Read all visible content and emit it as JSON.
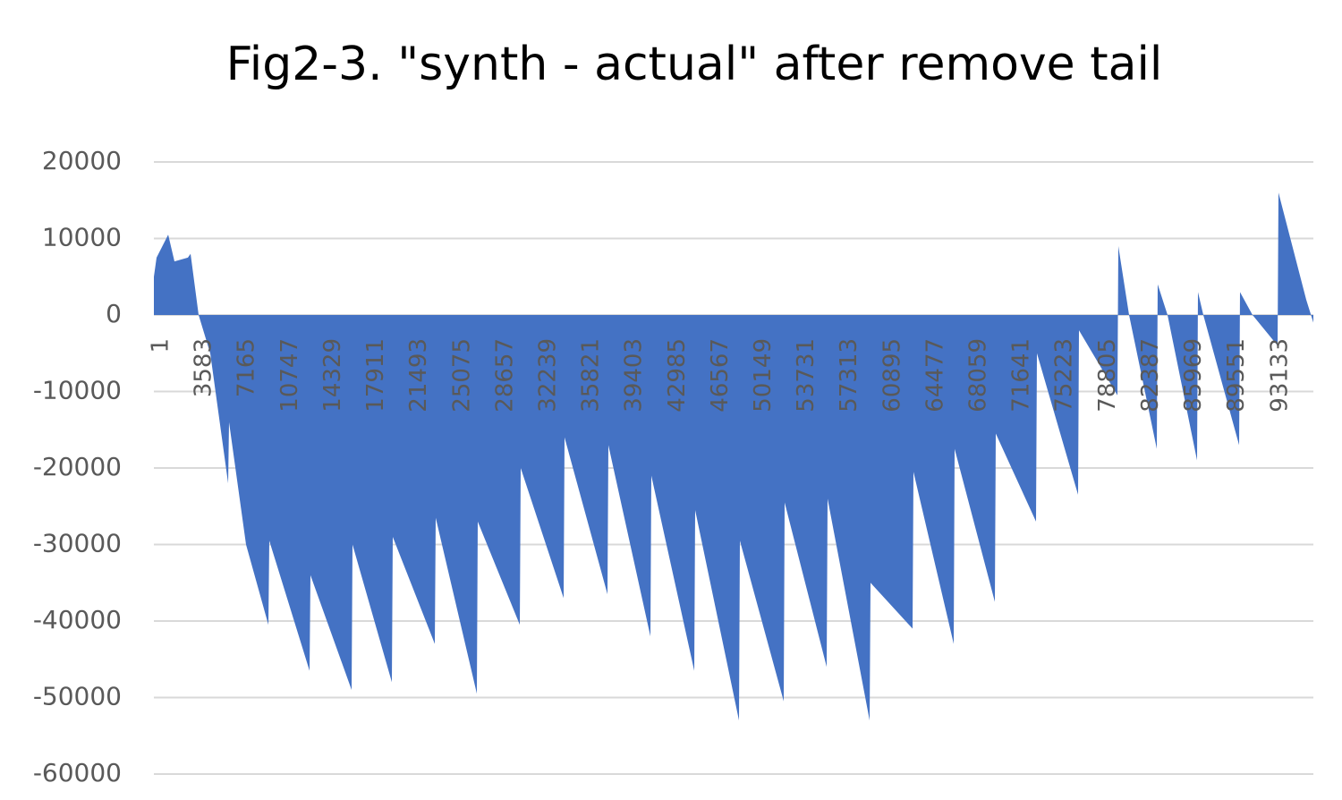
{
  "chart_data": {
    "type": "area",
    "title": "Fig2-3. \"synth - actual\" after remove tail",
    "color": "#4472c4",
    "grid": true,
    "xlim": [
      0,
      96500
    ],
    "ylim": [
      -60000,
      20000
    ],
    "yticks": [
      -60000,
      -50000,
      -40000,
      -30000,
      -20000,
      -10000,
      0,
      10000,
      20000
    ],
    "xticks": [
      1,
      3583,
      7165,
      10747,
      14329,
      17911,
      21493,
      25075,
      28657,
      32239,
      35821,
      39403,
      42985,
      46567,
      50149,
      53731,
      57313,
      60895,
      64477,
      68059,
      71641,
      75223,
      78805,
      82387,
      85969,
      89551,
      93133
    ],
    "x": [
      1,
      223,
      1191,
      1713,
      2830,
      3053,
      3723,
      4691,
      6180,
      6254,
      7669,
      9531,
      9606,
      12956,
      13031,
      16456,
      16530,
      19806,
      19881,
      23380,
      23454,
      26880,
      26954,
      30454,
      30528,
      34103,
      34177,
      37751,
      37826,
      41325,
      41400,
      44974,
      45048,
      48697,
      48771,
      52420,
      52494,
      55994,
      56068,
      59568,
      59642,
      63142,
      63216,
      66567,
      66641,
      69992,
      70066,
      73417,
      73491,
      76917,
      76991,
      80193,
      80267,
      81160,
      83469,
      83543,
      84362,
      86820,
      86894,
      87341,
      90320,
      90394,
      91437,
      93522,
      93596,
      95904,
      96500
    ],
    "values": [
      5000,
      7500,
      10500,
      7000,
      7500,
      8000,
      0,
      -5000,
      -22000,
      -14000,
      -30000,
      -40500,
      -29500,
      -46500,
      -34000,
      -49000,
      -30000,
      -48000,
      -29000,
      -43000,
      -26500,
      -49500,
      -27000,
      -40500,
      -20000,
      -37000,
      -16000,
      -36500,
      -17000,
      -42000,
      -21000,
      -46500,
      -25500,
      -53000,
      -29500,
      -50500,
      -24500,
      -46000,
      -24000,
      -53000,
      -35000,
      -41000,
      -20500,
      -43000,
      -17500,
      -37500,
      -15500,
      -27000,
      -5000,
      -23500,
      -2000,
      -10500,
      9000,
      0,
      -17500,
      4000,
      0,
      -19000,
      3000,
      0,
      -17000,
      3000,
      0,
      -4000,
      16000,
      2000,
      -1000
    ]
  }
}
